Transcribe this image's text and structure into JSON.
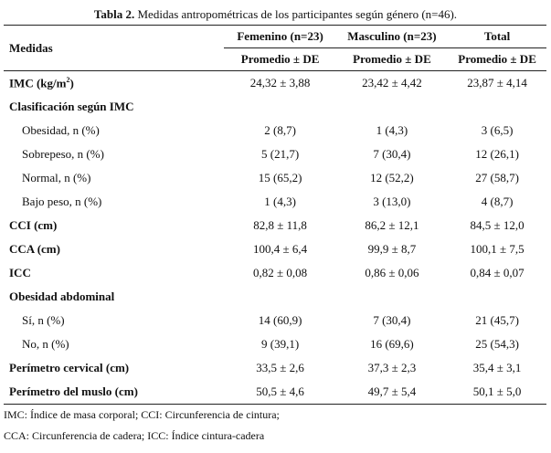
{
  "caption": {
    "label": "Tabla 2.",
    "text": " Medidas antropométricas de los participantes según género (n=46)."
  },
  "header": {
    "col0": "Medidas",
    "col1": "Femenino (n=23)",
    "col2": "Masculino (n=23)",
    "col3": "Total",
    "sub1": "Promedio ± DE",
    "sub2": "Promedio ± DE",
    "sub3": "Promedio ± DE"
  },
  "rows": [
    {
      "label": "IMC (kg/m",
      "sup": "2",
      "label_end": ")",
      "fem": "24,32 ± 3,88",
      "mas": "23,42 ± 4,42",
      "tot": "23,87 ± 4,14"
    },
    {
      "label": "Clasificación según IMC",
      "fem": "",
      "mas": "",
      "tot": ""
    },
    {
      "label": "Obesidad, n (%)",
      "fem": "2 (8,7)",
      "mas": "1 (4,3)",
      "tot": "3 (6,5)"
    },
    {
      "label": "Sobrepeso, n (%)",
      "fem": "5 (21,7)",
      "mas": "7 (30,4)",
      "tot": "12 (26,1)"
    },
    {
      "label": "Normal, n (%)",
      "fem": "15 (65,2)",
      "mas": "12 (52,2)",
      "tot": "27 (58,7)"
    },
    {
      "label": "Bajo peso, n (%)",
      "fem": "1 (4,3)",
      "mas": "3 (13,0)",
      "tot": "4 (8,7)"
    },
    {
      "label": "CCI (cm)",
      "fem": "82,8 ± 11,8",
      "mas": "86,2 ± 12,1",
      "tot": "84,5 ± 12,0"
    },
    {
      "label": "CCA (cm)",
      "fem": "100,4 ± 6,4",
      "mas": "99,9 ± 8,7",
      "tot": "100,1 ± 7,5"
    },
    {
      "label": "ICC",
      "fem": "0,82 ± 0,08",
      "mas": "0,86 ± 0,06",
      "tot": "0,84 ± 0,07"
    },
    {
      "label": "Obesidad abdominal",
      "fem": "",
      "mas": "",
      "tot": ""
    },
    {
      "label": "Sí, n (%)",
      "fem": "14 (60,9)",
      "mas": "7 (30,4)",
      "tot": "21 (45,7)"
    },
    {
      "label": "No, n (%)",
      "fem": "9 (39,1)",
      "mas": "16 (69,6)",
      "tot": "25 (54,3)"
    },
    {
      "label": "Perímetro cervical (cm)",
      "fem": "33,5 ± 2,6",
      "mas": "37,3 ± 2,3",
      "tot": "35,4 ± 3,1"
    },
    {
      "label": "Perímetro del muslo (cm)",
      "fem": "50,5 ± 4,6",
      "mas": "49,7 ± 5,4",
      "tot": "50,1 ± 5,0"
    }
  ],
  "footnotes": [
    "IMC: Índice de masa corporal; CCI: Circunferencia de cintura;",
    "CCA: Circunferencia de cadera; ICC: Índice cintura-cadera"
  ]
}
